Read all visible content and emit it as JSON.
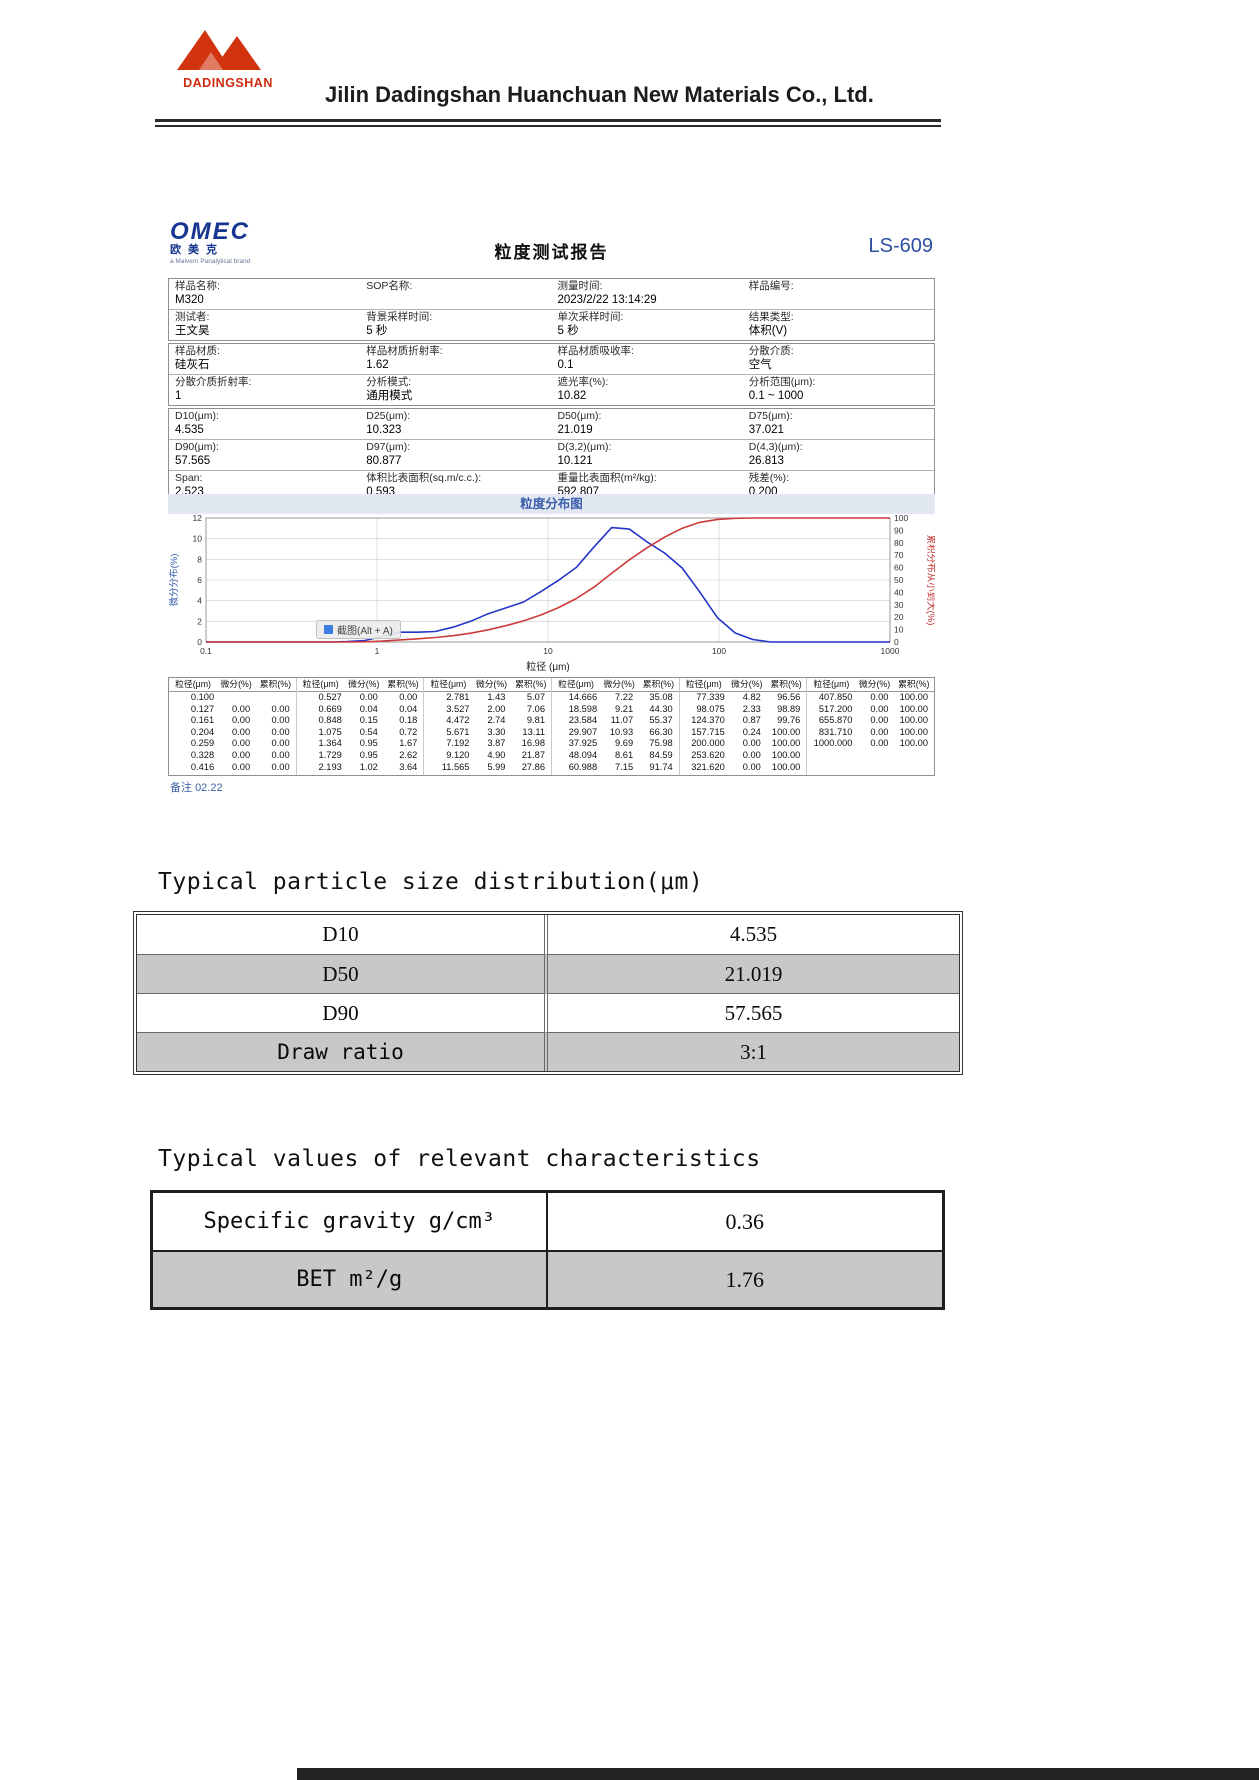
{
  "header": {
    "logo_text": "DADINGSHAN",
    "company": "Jilin Dadingshan Huanchuan New Materials Co., Ltd."
  },
  "report": {
    "brand": {
      "name": "OMEC",
      "cn": "欧美克",
      "sub": "a Malvern Panalytical brand"
    },
    "title": "粒度测试报告",
    "model": "LS-609",
    "overlay_tip": "截图(Alt + A)",
    "note_label": "备注",
    "note_value": "02.22",
    "param_groups": [
      [
        [
          {
            "label": "样品名称:",
            "value": "M320"
          },
          {
            "label": "SOP名称:",
            "value": ""
          },
          {
            "label": "测量时间:",
            "value": "2023/2/22 13:14:29"
          },
          {
            "label": "样品编号:",
            "value": ""
          }
        ],
        [
          {
            "label": "测试者:",
            "value": "王文昊"
          },
          {
            "label": "背景采样时间:",
            "value": "5 秒"
          },
          {
            "label": "单次采样时间:",
            "value": "5 秒"
          },
          {
            "label": "结果类型:",
            "value": "体积(V)"
          }
        ]
      ],
      [
        [
          {
            "label": "样品材质:",
            "value": "硅灰石"
          },
          {
            "label": "样品材质折射率:",
            "value": "1.62"
          },
          {
            "label": "样品材质吸收率:",
            "value": "0.1"
          },
          {
            "label": "分散介质:",
            "value": "空气"
          }
        ],
        [
          {
            "label": "分散介质折射率:",
            "value": "1"
          },
          {
            "label": "分析模式:",
            "value": "通用模式"
          },
          {
            "label": "遮光率(%):",
            "value": "10.82"
          },
          {
            "label": "分析范围(μm):",
            "value": "0.1 ~ 1000"
          }
        ]
      ],
      [
        [
          {
            "label": "D10(μm):",
            "value": "4.535"
          },
          {
            "label": "D25(μm):",
            "value": "10.323"
          },
          {
            "label": "D50(μm):",
            "value": "21.019"
          },
          {
            "label": "D75(μm):",
            "value": "37.021"
          }
        ],
        [
          {
            "label": "D90(μm):",
            "value": "57.565"
          },
          {
            "label": "D97(μm):",
            "value": "80.877"
          },
          {
            "label": "D(3,2)(μm):",
            "value": "10.121"
          },
          {
            "label": "D(4,3)(μm):",
            "value": "26.813"
          }
        ],
        [
          {
            "label": "Span:",
            "value": "2.523"
          },
          {
            "label": "体积比表面积(sq.m/c.c.):",
            "value": "0.593"
          },
          {
            "label": "重量比表面积(m²/kg):",
            "value": "592.807"
          },
          {
            "label": "残差(%):",
            "value": "0.200"
          }
        ]
      ]
    ],
    "distribution_table": {
      "headers": [
        "粒径(μm)",
        "微分(%)",
        "累积(%)"
      ],
      "groups": [
        [
          [
            "0.100",
            "",
            ""
          ],
          [
            "0.127",
            "0.00",
            "0.00"
          ],
          [
            "0.161",
            "0.00",
            "0.00"
          ],
          [
            "0.204",
            "0.00",
            "0.00"
          ],
          [
            "0.259",
            "0.00",
            "0.00"
          ],
          [
            "0.328",
            "0.00",
            "0.00"
          ],
          [
            "0.416",
            "0.00",
            "0.00"
          ]
        ],
        [
          [
            "0.527",
            "0.00",
            "0.00"
          ],
          [
            "0.669",
            "0.04",
            "0.04"
          ],
          [
            "0.848",
            "0.15",
            "0.18"
          ],
          [
            "1.075",
            "0.54",
            "0.72"
          ],
          [
            "1.364",
            "0.95",
            "1.67"
          ],
          [
            "1.729",
            "0.95",
            "2.62"
          ],
          [
            "2.193",
            "1.02",
            "3.64"
          ]
        ],
        [
          [
            "2.781",
            "1.43",
            "5.07"
          ],
          [
            "3.527",
            "2.00",
            "7.06"
          ],
          [
            "4.472",
            "2.74",
            "9.81"
          ],
          [
            "5.671",
            "3.30",
            "13.11"
          ],
          [
            "7.192",
            "3.87",
            "16.98"
          ],
          [
            "9.120",
            "4.90",
            "21.87"
          ],
          [
            "11.565",
            "5.99",
            "27.86"
          ]
        ],
        [
          [
            "14.666",
            "7.22",
            "35.08"
          ],
          [
            "18.598",
            "9.21",
            "44.30"
          ],
          [
            "23.584",
            "11.07",
            "55.37"
          ],
          [
            "29.907",
            "10.93",
            "66.30"
          ],
          [
            "37.925",
            "9.69",
            "75.98"
          ],
          [
            "48.094",
            "8.61",
            "84.59"
          ],
          [
            "60.988",
            "7.15",
            "91.74"
          ]
        ],
        [
          [
            "77.339",
            "4.82",
            "96.56"
          ],
          [
            "98.075",
            "2.33",
            "98.89"
          ],
          [
            "124.370",
            "0.87",
            "99.76"
          ],
          [
            "157.715",
            "0.24",
            "100.00"
          ],
          [
            "200.000",
            "0.00",
            "100.00"
          ],
          [
            "253.620",
            "0.00",
            "100.00"
          ],
          [
            "321.620",
            "0.00",
            "100.00"
          ]
        ],
        [
          [
            "407.850",
            "0.00",
            "100.00"
          ],
          [
            "517.200",
            "0.00",
            "100.00"
          ],
          [
            "655.870",
            "0.00",
            "100.00"
          ],
          [
            "831.710",
            "0.00",
            "100.00"
          ],
          [
            "1000.000",
            "0.00",
            "100.00"
          ]
        ]
      ]
    }
  },
  "chart_data": {
    "type": "line",
    "title": "粒度分布图",
    "xlabel": "粒径 (μm)",
    "ylabel_left": "微分分布(%)",
    "ylabel_right": "累积分布从小到大(%)",
    "x_scale": "log",
    "xlim": [
      0.1,
      1000
    ],
    "ylim_left": [
      0,
      12
    ],
    "ylim_right": [
      0,
      100
    ],
    "xticks": [
      0.1,
      1,
      10,
      100,
      1000
    ],
    "yticks_left": [
      0,
      2,
      4,
      6,
      8,
      10,
      12
    ],
    "yticks_right": [
      0,
      10,
      20,
      30,
      40,
      50,
      60,
      70,
      80,
      90,
      100
    ],
    "grid": true,
    "x": [
      0.1,
      0.127,
      0.161,
      0.204,
      0.259,
      0.328,
      0.416,
      0.527,
      0.669,
      0.848,
      1.075,
      1.364,
      1.729,
      2.193,
      2.781,
      3.527,
      4.472,
      5.671,
      7.192,
      9.12,
      11.565,
      14.666,
      18.598,
      23.584,
      29.907,
      37.925,
      48.094,
      60.988,
      77.339,
      98.075,
      124.37,
      157.715,
      200.0,
      253.62,
      321.62,
      407.85,
      517.2,
      655.87,
      831.71,
      1000.0
    ],
    "series": [
      {
        "name": "微分分布",
        "axis": "left",
        "color": "#2434c8",
        "y": [
          0,
          0,
          0,
          0,
          0,
          0,
          0,
          0,
          0.04,
          0.15,
          0.54,
          0.95,
          0.95,
          1.02,
          1.43,
          2.0,
          2.74,
          3.3,
          3.87,
          4.9,
          5.99,
          7.22,
          9.21,
          11.07,
          10.93,
          9.69,
          8.61,
          7.15,
          4.82,
          2.33,
          0.87,
          0.24,
          0,
          0,
          0,
          0,
          0,
          0,
          0,
          0
        ]
      },
      {
        "name": "累积分布",
        "axis": "right",
        "color": "#cc3b3b",
        "y": [
          0,
          0,
          0,
          0,
          0,
          0,
          0,
          0,
          0.04,
          0.18,
          0.72,
          1.67,
          2.62,
          3.64,
          5.07,
          7.06,
          9.81,
          13.11,
          16.98,
          21.87,
          27.86,
          35.08,
          44.3,
          55.37,
          66.3,
          75.98,
          84.59,
          91.74,
          96.56,
          98.89,
          99.76,
          100,
          100,
          100,
          100,
          100,
          100,
          100,
          100,
          100
        ]
      }
    ]
  },
  "typical_distribution": {
    "title": "Typical particle size distribution(μm)",
    "rows": [
      {
        "label": "D10",
        "value": "4.535",
        "mono": false
      },
      {
        "label": "D50",
        "value": "21.019",
        "mono": false
      },
      {
        "label": "D90",
        "value": "57.565",
        "mono": false
      },
      {
        "label": "Draw ratio",
        "value": "3:1",
        "mono": true
      }
    ]
  },
  "typical_values": {
    "title": "Typical values of relevant characteristics",
    "rows": [
      {
        "label": "Specific gravity g/cm³",
        "value": "0.36",
        "mono": true
      },
      {
        "label": "BET m²/g",
        "value": "1.76",
        "mono": true
      }
    ]
  }
}
